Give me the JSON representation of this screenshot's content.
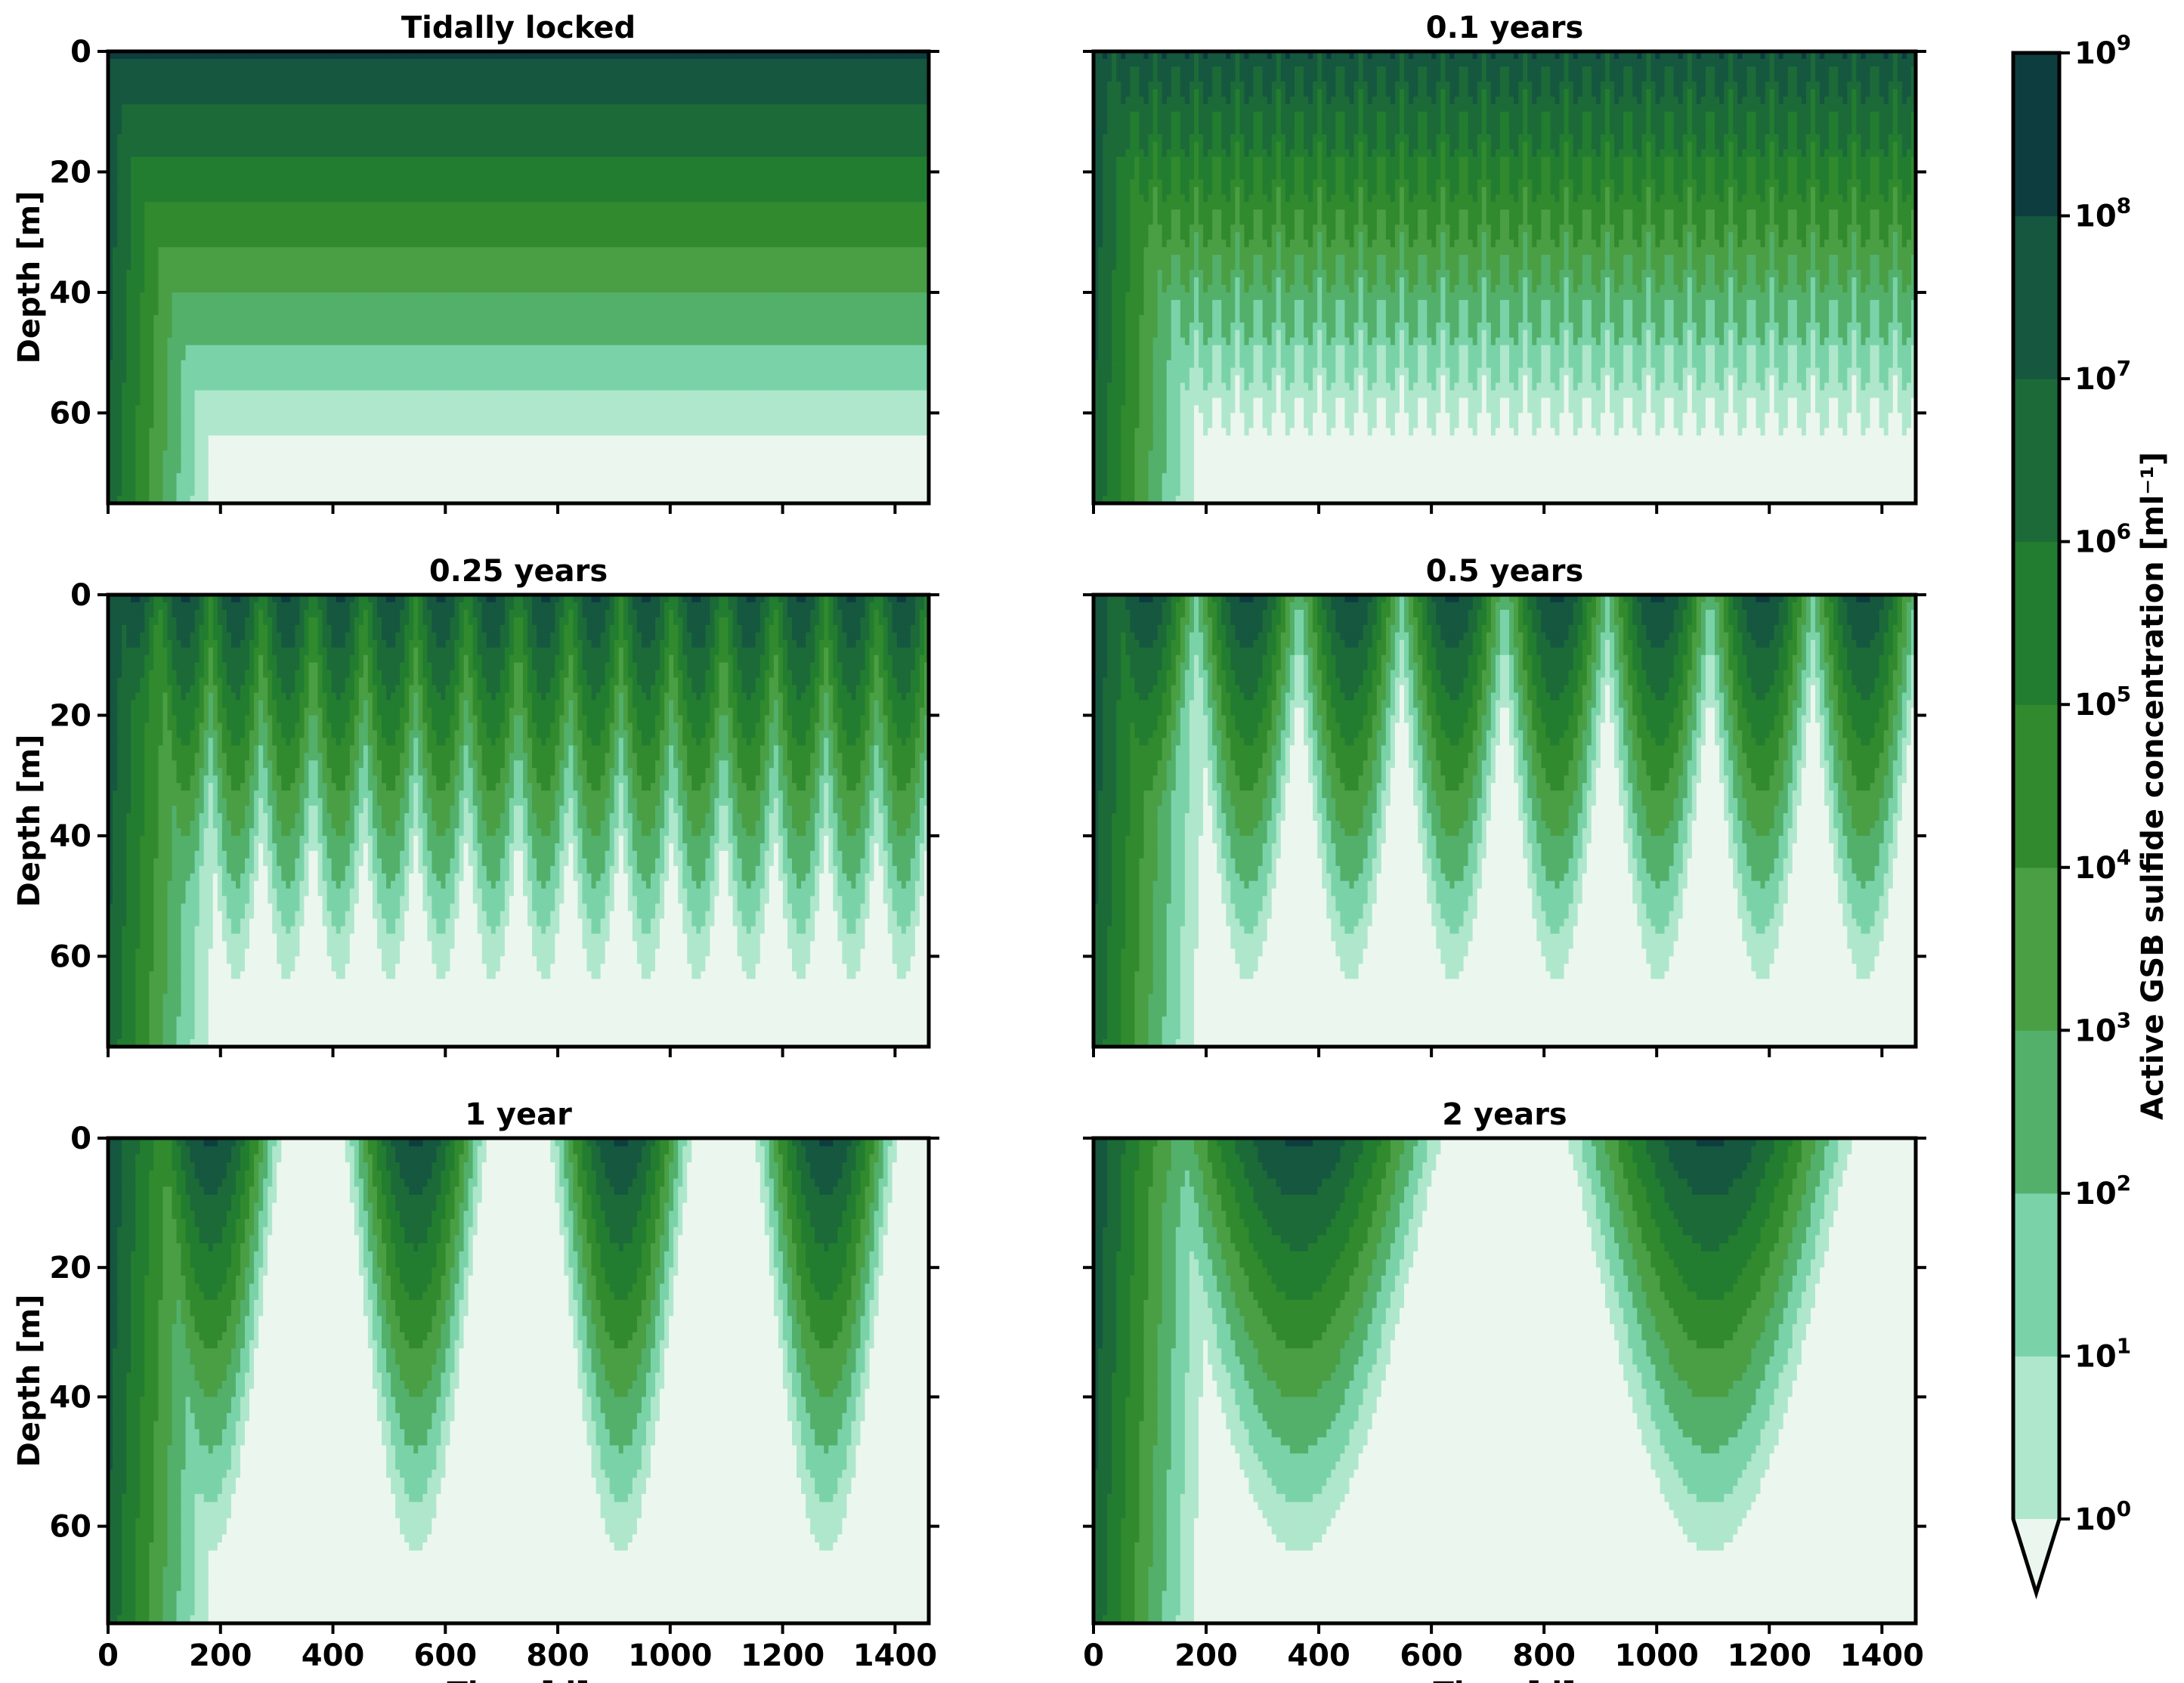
{
  "colors": {
    "levels": [
      "#ebf7ee",
      "#afe7cc",
      "#7ad3a8",
      "#53b06b",
      "#4a9e44",
      "#318a2e",
      "#237d30",
      "#1c6a38",
      "#15573f",
      "#0e3d3f"
    ],
    "under": "#ebf7ee",
    "axis": "#000000"
  },
  "chart_data": [
    {
      "type": "heatmap",
      "title": "Tidally locked",
      "period_days": null,
      "xlabel": "",
      "ylabel": "Depth [m]",
      "xlim": [
        0,
        1460
      ],
      "ylim": [
        75,
        0
      ],
      "xticks": [
        0,
        200,
        400,
        600,
        800,
        1000,
        1200,
        1400
      ],
      "yticks": [
        0,
        20,
        40,
        60
      ],
      "steady_level_depths_m": [
        58,
        50,
        42,
        34,
        26,
        17,
        10,
        3
      ]
    },
    {
      "type": "heatmap",
      "title": "0.1 years",
      "period_days": 36.5,
      "xlabel": "",
      "ylabel": "",
      "xlim": [
        0,
        1460
      ],
      "ylim": [
        75,
        0
      ],
      "xticks": [
        0,
        200,
        400,
        600,
        800,
        1000,
        1200,
        1400
      ],
      "yticks": [
        0,
        20,
        40,
        60
      ]
    },
    {
      "type": "heatmap",
      "title": "0.25 years",
      "period_days": 91.25,
      "xlabel": "",
      "ylabel": "Depth [m]",
      "xlim": [
        0,
        1460
      ],
      "ylim": [
        75,
        0
      ],
      "xticks": [
        0,
        200,
        400,
        600,
        800,
        1000,
        1200,
        1400
      ],
      "yticks": [
        0,
        20,
        40,
        60
      ]
    },
    {
      "type": "heatmap",
      "title": "0.5 years",
      "period_days": 182.5,
      "xlabel": "",
      "ylabel": "",
      "xlim": [
        0,
        1460
      ],
      "ylim": [
        75,
        0
      ],
      "xticks": [
        0,
        200,
        400,
        600,
        800,
        1000,
        1200,
        1400
      ],
      "yticks": [
        0,
        20,
        40,
        60
      ]
    },
    {
      "type": "heatmap",
      "title": "1 year",
      "period_days": 365,
      "xlabel": "Time [d]",
      "ylabel": "Depth [m]",
      "xlim": [
        0,
        1460
      ],
      "ylim": [
        75,
        0
      ],
      "xticks": [
        0,
        200,
        400,
        600,
        800,
        1000,
        1200,
        1400
      ],
      "yticks": [
        0,
        20,
        40,
        60
      ]
    },
    {
      "type": "heatmap",
      "title": "2 years",
      "period_days": 730,
      "xlabel": "Time [d]",
      "ylabel": "",
      "xlim": [
        0,
        1460
      ],
      "ylim": [
        75,
        0
      ],
      "xticks": [
        0,
        200,
        400,
        600,
        800,
        1000,
        1200,
        1400
      ],
      "yticks": [
        0,
        20,
        40,
        60
      ]
    }
  ],
  "colorbar": {
    "label": "Active GSB sulfide concentration [ml⁻¹]",
    "tick_bases": [
      "10",
      "10",
      "10",
      "10",
      "10",
      "10",
      "10",
      "10",
      "10",
      "10"
    ],
    "tick_exponents": [
      "0",
      "1",
      "2",
      "3",
      "4",
      "5",
      "6",
      "7",
      "8",
      "9"
    ],
    "log_scale": true,
    "extend": "min"
  }
}
